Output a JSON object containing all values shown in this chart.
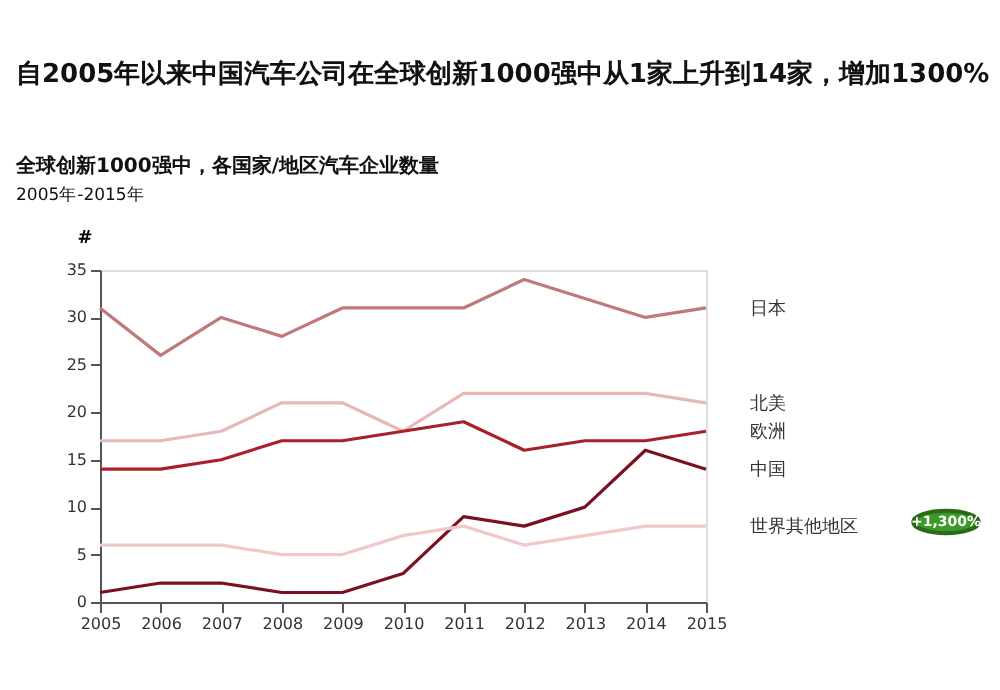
{
  "chart_data": {
    "type": "line",
    "title": "自2005年以来中国汽车公司在全球创新1000强中从1家上升到14家，增加1300%",
    "subtitle": "全球创新1000强中，各国家/地区汽车企业数量",
    "ylabel": "#",
    "annotations": [
      "2005年-2015年",
      "+1,300%"
    ],
    "x": [
      2005,
      2006,
      2007,
      2008,
      2009,
      2010,
      2011,
      2012,
      2013,
      2014,
      2015
    ],
    "xlim": [
      2005,
      2015
    ],
    "xticks": [
      2005,
      2006,
      2007,
      2008,
      2009,
      2010,
      2011,
      2012,
      2013,
      2014,
      2015
    ],
    "ylim": [
      0,
      35
    ],
    "yticks": [
      0,
      5,
      10,
      15,
      20,
      25,
      30,
      35
    ],
    "grid": false,
    "legend": false,
    "marker": "none",
    "line_style": "solid",
    "series": [
      {
        "name": "日本",
        "color": "#c0787a",
        "values": [
          31,
          26,
          30,
          28,
          31,
          31,
          31,
          34,
          32,
          30,
          31
        ]
      },
      {
        "name": "北美",
        "color": "#e8b8b8",
        "values": [
          17,
          17,
          18,
          21,
          21,
          18,
          22,
          22,
          22,
          22,
          21
        ]
      },
      {
        "name": "欧洲",
        "color": "#a8202a",
        "values": [
          14,
          14,
          15,
          17,
          17,
          18,
          19,
          16,
          17,
          17,
          18
        ]
      },
      {
        "name": "中国",
        "color": "#7a1020",
        "values": [
          1,
          2,
          2,
          1,
          1,
          3,
          9,
          8,
          10,
          16,
          14
        ]
      },
      {
        "name": "世界其他地区",
        "color": "#f0c8c8",
        "values": [
          6,
          6,
          6,
          5,
          5,
          7,
          8,
          6,
          7,
          8,
          8
        ]
      }
    ]
  }
}
